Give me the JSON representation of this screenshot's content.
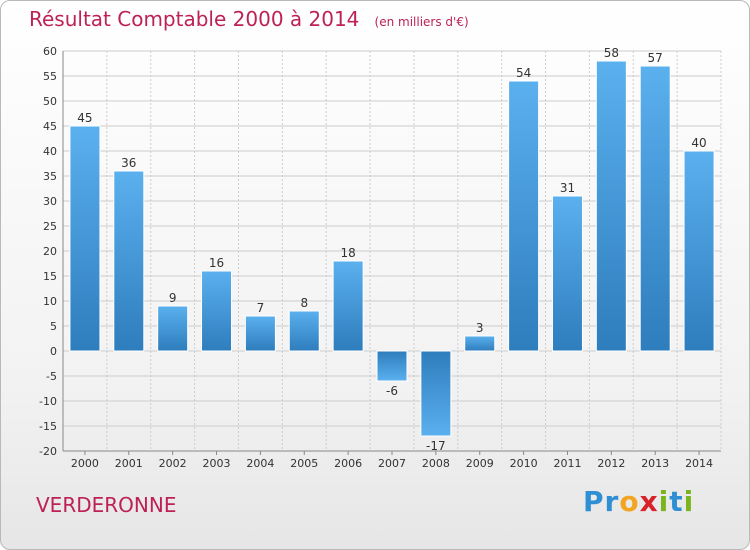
{
  "chart_data": {
    "type": "bar",
    "title": "Résultat Comptable 2000 à 2014",
    "subtitle": "(en milliers d'€)",
    "categories": [
      "2000",
      "2001",
      "2002",
      "2003",
      "2004",
      "2005",
      "2006",
      "2007",
      "2008",
      "2009",
      "2010",
      "2011",
      "2012",
      "2013",
      "2014"
    ],
    "values": [
      45,
      36,
      9,
      16,
      7,
      8,
      18,
      -6,
      -17,
      3,
      54,
      31,
      58,
      57,
      40
    ],
    "value_labels": [
      "45",
      "36",
      "9",
      "16",
      "7",
      "8",
      "18",
      "-6",
      "-17",
      "3",
      "54",
      "31",
      "58",
      "57",
      "40"
    ],
    "ylim": [
      -20,
      60
    ],
    "yticks": [
      "-20",
      "-15",
      "-10",
      "-5",
      "0",
      "5",
      "10",
      "15",
      "20",
      "25",
      "30",
      "35",
      "40",
      "45",
      "50",
      "55",
      "60"
    ],
    "grid": true,
    "xlabel": "",
    "ylabel": ""
  },
  "footer": {
    "city": "VERDERONNE",
    "logo_letters": [
      "P",
      "r",
      "o",
      "x",
      "i",
      "t",
      "i"
    ],
    "logo_colors": [
      "#2f8fd3",
      "#2f8fd3",
      "#f3a522",
      "#d8232a",
      "#7ab51d",
      "#2f8fd3",
      "#7ab51d"
    ]
  },
  "colors": {
    "bar_light": "#5bb0ee",
    "bar_dark": "#2e7dbd",
    "grid": "#cccccc",
    "accent": "#bd2156"
  }
}
